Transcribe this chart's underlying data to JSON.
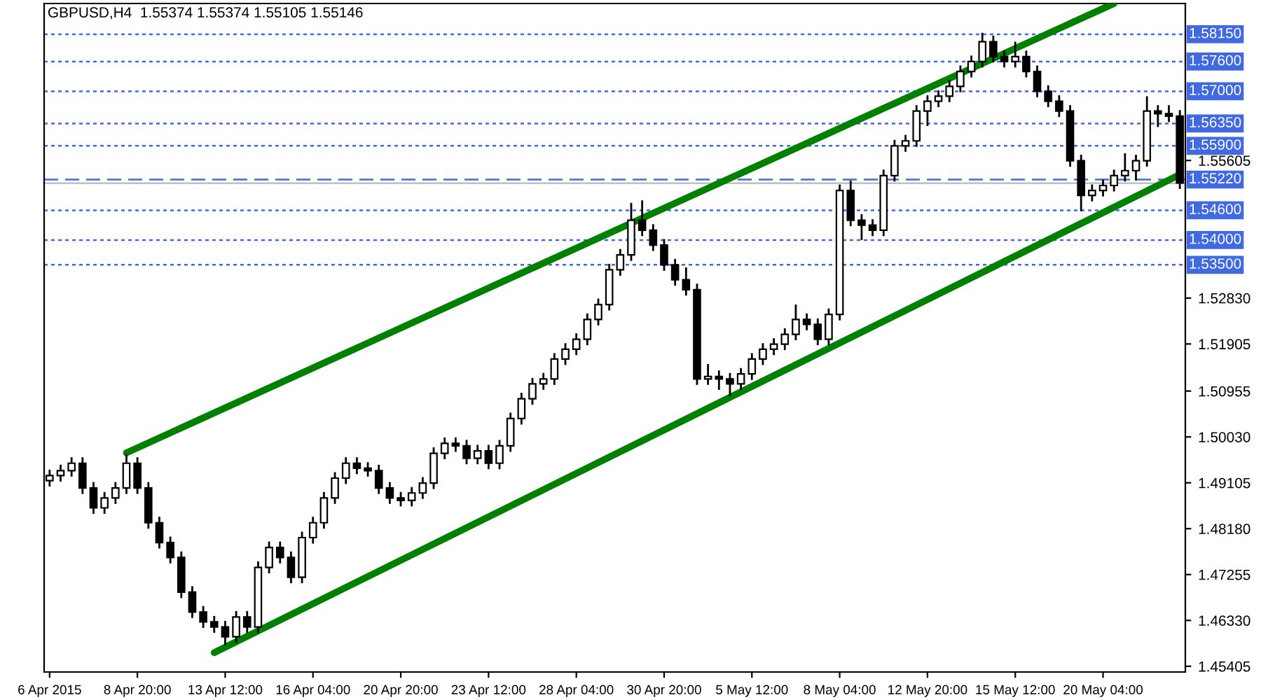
{
  "chart_data": {
    "type": "candlestick",
    "title": "GBPUSD,H4  1.55374 1.55374 1.55105 1.55146",
    "categories": [
      "6 Apr 2015",
      null,
      null,
      null,
      null,
      null,
      null,
      null,
      "8 Apr 20:00",
      null,
      null,
      null,
      null,
      null,
      null,
      null,
      "13 Apr 12:00",
      null,
      null,
      null,
      null,
      null,
      null,
      null,
      "16 Apr 04:00",
      null,
      null,
      null,
      null,
      null,
      null,
      null,
      "20 Apr 20:00",
      null,
      null,
      null,
      null,
      null,
      null,
      null,
      "23 Apr 12:00",
      null,
      null,
      null,
      null,
      null,
      null,
      null,
      "28 Apr 04:00",
      null,
      null,
      null,
      null,
      null,
      null,
      null,
      "30 Apr 20:00",
      null,
      null,
      null,
      null,
      null,
      null,
      null,
      "5 May 12:00",
      null,
      null,
      null,
      null,
      null,
      null,
      null,
      "8 May 04:00",
      null,
      null,
      null,
      null,
      null,
      null,
      null,
      "12 May 20:00",
      null,
      null,
      null,
      null,
      null,
      null,
      null,
      "15 May 12:00",
      null,
      null,
      null,
      null,
      null,
      null,
      null,
      "20 May 04:00",
      null,
      null,
      null,
      null,
      null,
      null,
      null
    ],
    "ohlc": [
      [
        1.4915,
        1.4937,
        1.4903,
        1.4925
      ],
      [
        1.4925,
        1.4947,
        1.4913,
        1.4935
      ],
      [
        1.4935,
        1.4962,
        1.4923,
        1.495
      ],
      [
        1.495,
        1.4962,
        1.4888,
        1.49
      ],
      [
        1.49,
        1.4912,
        1.4848,
        1.486
      ],
      [
        1.486,
        1.4892,
        1.4848,
        1.488
      ],
      [
        1.488,
        1.4912,
        1.4868,
        1.49
      ],
      [
        1.49,
        1.4968,
        1.4888,
        1.495
      ],
      [
        1.495,
        1.4962,
        1.4888,
        1.49
      ],
      [
        1.49,
        1.4912,
        1.4818,
        1.483
      ],
      [
        1.483,
        1.4842,
        1.4778,
        1.479
      ],
      [
        1.479,
        1.4802,
        1.4748,
        1.476
      ],
      [
        1.476,
        1.4772,
        1.4678,
        1.469
      ],
      [
        1.469,
        1.4702,
        1.4638,
        1.465
      ],
      [
        1.465,
        1.4662,
        1.4618,
        1.463
      ],
      [
        1.463,
        1.4642,
        1.4608,
        1.462
      ],
      [
        1.462,
        1.4632,
        1.4583,
        1.46
      ],
      [
        1.46,
        1.4652,
        1.4588,
        1.464
      ],
      [
        1.464,
        1.4652,
        1.4608,
        1.462
      ],
      [
        1.462,
        1.4752,
        1.4608,
        1.474
      ],
      [
        1.474,
        1.4792,
        1.4728,
        1.478
      ],
      [
        1.478,
        1.4792,
        1.4748,
        1.476
      ],
      [
        1.476,
        1.4772,
        1.4708,
        1.472
      ],
      [
        1.472,
        1.4812,
        1.4708,
        1.48
      ],
      [
        1.48,
        1.4842,
        1.4788,
        1.483
      ],
      [
        1.483,
        1.4892,
        1.4818,
        1.488
      ],
      [
        1.488,
        1.4932,
        1.4868,
        1.492
      ],
      [
        1.492,
        1.4962,
        1.4908,
        1.495
      ],
      [
        1.495,
        1.4962,
        1.4928,
        1.494
      ],
      [
        1.494,
        1.4952,
        1.4923,
        1.4935
      ],
      [
        1.4935,
        1.4947,
        1.4888,
        1.49
      ],
      [
        1.49,
        1.4912,
        1.4868,
        1.488
      ],
      [
        1.488,
        1.4892,
        1.4863,
        1.4875
      ],
      [
        1.4875,
        1.4902,
        1.4863,
        1.489
      ],
      [
        1.489,
        1.4922,
        1.4878,
        1.491
      ],
      [
        1.491,
        1.4982,
        1.4898,
        1.497
      ],
      [
        1.497,
        1.5002,
        1.4958,
        1.499
      ],
      [
        1.499,
        1.5002,
        1.4973,
        1.4985
      ],
      [
        1.4985,
        1.4997,
        1.4948,
        1.496
      ],
      [
        1.496,
        1.4987,
        1.4948,
        1.4975
      ],
      [
        1.4975,
        1.4987,
        1.4938,
        1.495
      ],
      [
        1.495,
        1.4997,
        1.4938,
        1.4985
      ],
      [
        1.4985,
        1.5052,
        1.4973,
        1.504
      ],
      [
        1.504,
        1.5092,
        1.5028,
        1.508
      ],
      [
        1.508,
        1.5122,
        1.5068,
        1.511
      ],
      [
        1.511,
        1.5132,
        1.5098,
        1.512
      ],
      [
        1.512,
        1.5172,
        1.5108,
        1.516
      ],
      [
        1.516,
        1.5192,
        1.5148,
        1.518
      ],
      [
        1.518,
        1.5212,
        1.5168,
        1.52
      ],
      [
        1.52,
        1.5252,
        1.5188,
        1.524
      ],
      [
        1.524,
        1.5282,
        1.5228,
        1.527
      ],
      [
        1.527,
        1.5352,
        1.5258,
        1.534
      ],
      [
        1.534,
        1.5382,
        1.5328,
        1.537
      ],
      [
        1.537,
        1.5475,
        1.5358,
        1.544
      ],
      [
        1.544,
        1.548,
        1.5408,
        1.542
      ],
      [
        1.542,
        1.5432,
        1.5378,
        1.539
      ],
      [
        1.539,
        1.5402,
        1.5338,
        1.535
      ],
      [
        1.535,
        1.5362,
        1.5308,
        1.532
      ],
      [
        1.532,
        1.5345,
        1.5288,
        1.53
      ],
      [
        1.53,
        1.5312,
        1.5108,
        1.512
      ],
      [
        1.512,
        1.515,
        1.5108,
        1.5125
      ],
      [
        1.5125,
        1.5137,
        1.5098,
        1.512
      ],
      [
        1.512,
        1.5132,
        1.5085,
        1.511
      ],
      [
        1.511,
        1.5142,
        1.5098,
        1.513
      ],
      [
        1.513,
        1.5172,
        1.5118,
        1.516
      ],
      [
        1.516,
        1.5192,
        1.5148,
        1.518
      ],
      [
        1.518,
        1.5202,
        1.5168,
        1.519
      ],
      [
        1.519,
        1.5222,
        1.5178,
        1.521
      ],
      [
        1.521,
        1.527,
        1.5198,
        1.524
      ],
      [
        1.524,
        1.5252,
        1.5218,
        1.523
      ],
      [
        1.523,
        1.5242,
        1.5188,
        1.52
      ],
      [
        1.52,
        1.5262,
        1.5188,
        1.525
      ],
      [
        1.525,
        1.5512,
        1.5238,
        1.55
      ],
      [
        1.55,
        1.552,
        1.5428,
        1.544
      ],
      [
        1.544,
        1.5452,
        1.54,
        1.543
      ],
      [
        1.543,
        1.5442,
        1.5408,
        1.542
      ],
      [
        1.542,
        1.5542,
        1.5408,
        1.553
      ],
      [
        1.553,
        1.5602,
        1.5518,
        1.559
      ],
      [
        1.559,
        1.5612,
        1.5578,
        1.56
      ],
      [
        1.56,
        1.5672,
        1.5588,
        1.566
      ],
      [
        1.566,
        1.5692,
        1.563,
        1.568
      ],
      [
        1.568,
        1.5702,
        1.5668,
        1.569
      ],
      [
        1.569,
        1.5722,
        1.5678,
        1.571
      ],
      [
        1.571,
        1.5752,
        1.5698,
        1.574
      ],
      [
        1.574,
        1.5772,
        1.5728,
        1.576
      ],
      [
        1.576,
        1.5818,
        1.5748,
        1.58
      ],
      [
        1.58,
        1.5812,
        1.5758,
        1.577
      ],
      [
        1.577,
        1.5782,
        1.5748,
        1.576
      ],
      [
        1.576,
        1.58,
        1.5748,
        1.577
      ],
      [
        1.577,
        1.5782,
        1.5728,
        1.574
      ],
      [
        1.574,
        1.5752,
        1.5688,
        1.57
      ],
      [
        1.57,
        1.5712,
        1.5668,
        1.568
      ],
      [
        1.568,
        1.5692,
        1.5648,
        1.566
      ],
      [
        1.566,
        1.5672,
        1.5548,
        1.556
      ],
      [
        1.556,
        1.5572,
        1.5458,
        1.549
      ],
      [
        1.549,
        1.5512,
        1.5478,
        1.55
      ],
      [
        1.55,
        1.5522,
        1.5488,
        1.551
      ],
      [
        1.551,
        1.5542,
        1.5498,
        1.553
      ],
      [
        1.553,
        1.5575,
        1.5518,
        1.554
      ],
      [
        1.554,
        1.5572,
        1.552,
        1.556
      ],
      [
        1.556,
        1.569,
        1.5548,
        1.566
      ],
      [
        1.566,
        1.5672,
        1.5628,
        1.5655
      ],
      [
        1.5655,
        1.5672,
        1.5638,
        1.565
      ],
      [
        1.565,
        1.5662,
        1.5503,
        1.5515
      ]
    ],
    "series": [
      {
        "type": "line",
        "color": "#008000",
        "values": [
          null,
          null,
          null,
          null,
          null,
          null,
          null,
          1.4971,
          null,
          null,
          null,
          null,
          null,
          null,
          null,
          null,
          null,
          null,
          null,
          null,
          null,
          null,
          null,
          null,
          null,
          null,
          null,
          null,
          null,
          null,
          null,
          null,
          null,
          null,
          null,
          null,
          null,
          null,
          null,
          null,
          null,
          null,
          null,
          null,
          null,
          null,
          null,
          null,
          null,
          null,
          null,
          null,
          null,
          null,
          null,
          null,
          null,
          null,
          null,
          null,
          null,
          null,
          null,
          null,
          null,
          null,
          null,
          null,
          null,
          null,
          null,
          null,
          null,
          null,
          null,
          null,
          null,
          null,
          null,
          null,
          null,
          null,
          null,
          null,
          null,
          null,
          null,
          null,
          null,
          null,
          null,
          null,
          null,
          null,
          null,
          null,
          null,
          1.5877,
          null,
          null,
          null,
          null,
          null,
          null
        ]
      },
      {
        "type": "line",
        "color": "#008000",
        "values": [
          null,
          null,
          null,
          null,
          null,
          null,
          null,
          null,
          null,
          null,
          null,
          null,
          null,
          null,
          null,
          1.4568,
          null,
          null,
          null,
          null,
          null,
          null,
          null,
          null,
          null,
          null,
          null,
          null,
          null,
          null,
          null,
          null,
          null,
          null,
          null,
          null,
          null,
          null,
          null,
          null,
          null,
          null,
          null,
          null,
          null,
          null,
          null,
          null,
          null,
          null,
          null,
          null,
          null,
          null,
          null,
          null,
          null,
          null,
          null,
          null,
          null,
          null,
          null,
          null,
          null,
          null,
          null,
          null,
          null,
          null,
          null,
          null,
          null,
          null,
          null,
          null,
          null,
          null,
          null,
          null,
          null,
          null,
          null,
          null,
          null,
          null,
          null,
          null,
          null,
          null,
          null,
          null,
          null,
          null,
          null,
          null,
          null,
          null,
          null,
          null,
          null,
          null,
          null,
          1.5532
        ]
      }
    ],
    "ylim": [
      1.4529,
      1.5877
    ],
    "yticks": [
      {
        "value": 1.45405,
        "label": "1.45405"
      },
      {
        "value": 1.4633,
        "label": "1.46330"
      },
      {
        "value": 1.47255,
        "label": "1.47255"
      },
      {
        "value": 1.4818,
        "label": "1.48180"
      },
      {
        "value": 1.49105,
        "label": "1.49105"
      },
      {
        "value": 1.5003,
        "label": "1.50030"
      },
      {
        "value": 1.50955,
        "label": "1.50955"
      },
      {
        "value": 1.51905,
        "label": "1.51905"
      },
      {
        "value": 1.5283,
        "label": "1.52830"
      },
      {
        "value": 1.55605,
        "label": "1.55605"
      }
    ],
    "ref_lines": [
      {
        "axis": "y",
        "value": 1.5815,
        "label": "1.58150",
        "color": "#4169e1",
        "line_style": "dotted"
      },
      {
        "axis": "y",
        "value": 1.576,
        "label": "1.57600",
        "color": "#4169e1",
        "line_style": "dotted"
      },
      {
        "axis": "y",
        "value": 1.57,
        "label": "1.57000",
        "color": "#4169e1",
        "line_style": "dotted"
      },
      {
        "axis": "y",
        "value": 1.5635,
        "label": "1.56350",
        "color": "#4169e1",
        "line_style": "dotted"
      },
      {
        "axis": "y",
        "value": 1.559,
        "label": "1.55900",
        "color": "#4169e1",
        "line_style": "dotted"
      },
      {
        "axis": "y",
        "value": 1.5522,
        "label": "1.55220",
        "color": "#4169e1",
        "line_style": "dashed"
      },
      {
        "axis": "y",
        "value": 1.546,
        "label": "1.54600",
        "color": "#4169e1",
        "line_style": "dotted"
      },
      {
        "axis": "y",
        "value": 1.54,
        "label": "1.54000",
        "color": "#4169e1",
        "line_style": "dotted"
      },
      {
        "axis": "y",
        "value": 1.535,
        "label": "1.53500",
        "color": "#4169e1",
        "line_style": "dotted"
      },
      {
        "axis": "y",
        "value": 1.55146,
        "color": "#c0c0c0",
        "line_style": "solid"
      }
    ],
    "grid": false
  }
}
